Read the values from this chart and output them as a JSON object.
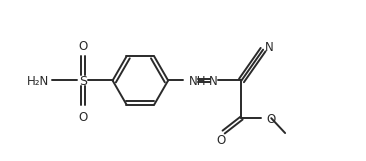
{
  "bg_color": "#ffffff",
  "line_color": "#2a2a2a",
  "line_width": 1.4,
  "font_size": 8.5,
  "fig_width": 3.66,
  "fig_height": 1.61,
  "dpi": 100,
  "xlim": [
    0,
    3.66
  ],
  "ylim": [
    0,
    1.61
  ]
}
